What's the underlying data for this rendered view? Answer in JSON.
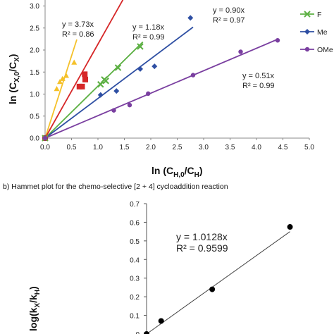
{
  "caption_b": "b) Hammet plot for the chemo-selective [2 + 4] cycloaddition reaction",
  "chart_data": [
    {
      "type": "scatter",
      "xlabel": "ln (C",
      "xlabel_sub": "H,0",
      "xlabel_mid": "/C",
      "xlabel_sub2": "H",
      "xlabel_end": ")",
      "ylabel": "ln (C",
      "ylabel_sub": "X,0",
      "ylabel_mid": "/C",
      "ylabel_sub2": "X",
      "ylabel_end": ")",
      "xlim": [
        0,
        5.0
      ],
      "ylim": [
        0,
        3.2
      ],
      "xticks": [
        "0.0",
        "0.5",
        "1.0",
        "1.5",
        "2.0",
        "2.5",
        "3.0",
        "3.5",
        "4.0",
        "4.5",
        "5.0"
      ],
      "yticks": [
        "0.0",
        "0.5",
        "1.0",
        "1.5",
        "2.0",
        "2.5",
        "3.0"
      ],
      "xtick_values": [
        0,
        0.5,
        1,
        1.5,
        2,
        2.5,
        3,
        3.5,
        4,
        4.5,
        5
      ],
      "ytick_values": [
        0,
        0.5,
        1,
        1.5,
        2,
        2.5,
        3
      ],
      "series": [
        {
          "color": "#f5c12a",
          "marker": "triangle",
          "slope": 3.73,
          "line_x": [
            0,
            0.6
          ],
          "eq": "y = 3.73x",
          "r2": "R² = 0.86",
          "points": [
            [
              0,
              0
            ],
            [
              0.22,
              1.12
            ],
            [
              0.28,
              1.28
            ],
            [
              0.33,
              1.35
            ],
            [
              0.4,
              1.42
            ],
            [
              0.55,
              1.72
            ]
          ]
        },
        {
          "color": "#d62728",
          "marker": "square",
          "line_x": [
            0,
            1.5
          ],
          "line_y": [
            0,
            3.2
          ],
          "points": [
            [
              0,
              0
            ],
            [
              0.65,
              1.17
            ],
            [
              0.7,
              1.17
            ],
            [
              0.75,
              1.45
            ],
            [
              0.76,
              1.33
            ],
            [
              1.48,
              3.2
            ]
          ]
        },
        {
          "name": "F",
          "color": "#5cb043",
          "marker": "x",
          "slope": 1.18,
          "line_x": [
            0,
            1.85
          ],
          "eq": "y = 1.18x",
          "r2": "R² = 0.99",
          "points": [
            [
              0,
              0
            ],
            [
              1.05,
              1.22
            ],
            [
              1.12,
              1.33
            ],
            [
              1.15,
              1.3
            ],
            [
              1.38,
              1.6
            ],
            [
              1.8,
              2.08
            ]
          ]
        },
        {
          "name": "Me",
          "color": "#2e4fa3",
          "marker": "diamond",
          "slope": 0.9,
          "line_x": [
            0,
            2.8
          ],
          "eq": "y = 0.90x",
          "r2": "R² = 0.97",
          "points": [
            [
              0,
              0
            ],
            [
              1.05,
              0.98
            ],
            [
              1.35,
              1.07
            ],
            [
              1.8,
              1.57
            ],
            [
              2.07,
              1.63
            ],
            [
              2.75,
              2.73
            ]
          ]
        },
        {
          "name": "OMe",
          "color": "#7a3fa0",
          "marker": "circle",
          "slope": 0.51,
          "line_x": [
            0,
            4.4
          ],
          "eq": "y = 0.51x",
          "r2": "R² = 0.99",
          "points": [
            [
              0,
              0
            ],
            [
              1.3,
              0.63
            ],
            [
              1.6,
              0.75
            ],
            [
              1.95,
              1.01
            ],
            [
              2.8,
              1.43
            ],
            [
              3.7,
              1.96
            ],
            [
              4.4,
              2.22
            ]
          ]
        }
      ]
    },
    {
      "type": "scatter",
      "ylabel": "log(k",
      "ylabel_sub": "X",
      "ylabel_mid": "/k",
      "ylabel_sub2": "H",
      "ylabel_end": ")",
      "ylim": [
        0,
        0.7
      ],
      "yticks": [
        "0",
        "0.1",
        "0.2",
        "0.3",
        "0.4",
        "0.5",
        "0.6",
        "0.7"
      ],
      "ytick_values": [
        0,
        0.1,
        0.2,
        0.3,
        0.4,
        0.5,
        0.6,
        0.7
      ],
      "slope": 1.0128,
      "eq": "y = 1.0128x",
      "r2": "R² = 0.9599",
      "points": [
        [
          0,
          0
        ],
        [
          0.06,
          0.07
        ],
        [
          0.27,
          0.24
        ],
        [
          0.59,
          0.575
        ]
      ]
    }
  ]
}
